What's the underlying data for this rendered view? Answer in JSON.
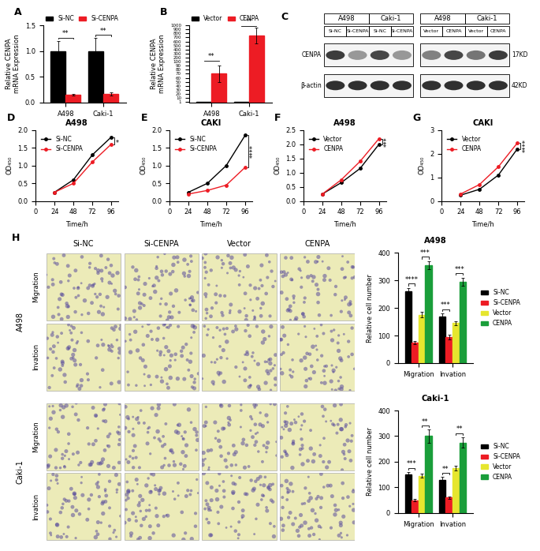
{
  "chart_data": [
    {
      "panel_label": "A",
      "type": "bar",
      "ylabel": "Relative CENPA\nmRNA Expression",
      "categories": [
        "A498",
        "Caki-1"
      ],
      "series": [
        {
          "name": "Si-NC",
          "color": "#000000",
          "values": [
            1.0,
            1.0
          ],
          "errors": [
            0.2,
            0.25
          ]
        },
        {
          "name": "Si-CENPA",
          "color": "#ed1c24",
          "values": [
            0.15,
            0.17
          ],
          "errors": [
            0.02,
            0.03
          ]
        }
      ],
      "ylim": [
        0,
        1.5
      ],
      "yticks": [
        {
          "value": 0,
          "label": "0.0"
        },
        {
          "value": 0.5,
          "label": "0.5"
        },
        {
          "value": 1.0,
          "label": "1.0"
        },
        {
          "value": 1.5,
          "label": "1.5"
        }
      ],
      "legend": "upper left",
      "comparisons": [
        {
          "category": "A498",
          "series": [
            "Si-NC",
            "Si-CENPA"
          ],
          "label": "**"
        },
        {
          "category": "Caki-1",
          "series": [
            "Si-NC",
            "Si-CENPA"
          ],
          "label": "**"
        }
      ]
    },
    {
      "panel_label": "B",
      "type": "bar",
      "ylabel": "Relative CENPA\nmRNA Expression",
      "categories": [
        "A498",
        "Caki-1"
      ],
      "series": [
        {
          "name": "Vector",
          "color": "#000000",
          "values": [
            1,
            1
          ]
        },
        {
          "name": "CENPA",
          "color": "#ed1c24",
          "values": [
            70,
            750
          ],
          "errors": [
            20,
            200
          ]
        }
      ],
      "ylim": [
        0,
        1000
      ],
      "yticks": [
        1,
        10,
        20,
        30,
        40,
        50,
        60,
        70,
        80,
        90,
        100,
        200,
        300,
        400,
        500,
        600,
        700,
        800,
        900,
        1000
      ],
      "legend": "upper left",
      "comparisons": [
        {
          "category": "A498",
          "series": [
            "Vector",
            "CENPA"
          ],
          "label": "**"
        },
        {
          "category": "Caki-1",
          "series": [
            "Vector",
            "CENPA"
          ],
          "label": "**"
        }
      ]
    },
    {
      "panel_label": "D",
      "type": "line",
      "title": "A498",
      "xlabel": "Time/h",
      "ylabel": "OD₄₅₀",
      "x": [
        24,
        48,
        72,
        96
      ],
      "series": [
        {
          "name": "Si-NC",
          "color": "#000000",
          "marker": "o",
          "values": [
            0.25,
            0.6,
            1.3,
            1.8
          ]
        },
        {
          "name": "Si-CENPA",
          "color": "#ed1c24",
          "marker": "o",
          "values": [
            0.25,
            0.5,
            1.1,
            1.6
          ]
        }
      ],
      "xlim": [
        0,
        105
      ],
      "xticks": [
        0,
        24,
        48,
        72,
        96
      ],
      "ylim": [
        0,
        2.0
      ],
      "yticks": [
        {
          "value": 0,
          "label": "0.0"
        },
        {
          "value": 0.5,
          "label": "0.5"
        },
        {
          "value": 1.0,
          "label": "1.0"
        },
        {
          "value": 1.5,
          "label": "1.5"
        },
        {
          "value": 2.0,
          "label": "2.0"
        }
      ],
      "legend": "upper left",
      "comparisons": [
        {
          "series": [
            "Si-NC",
            "Si-CENPA"
          ],
          "label": "*"
        }
      ]
    },
    {
      "panel_label": "E",
      "type": "line",
      "title": "CAKI",
      "xlabel": "Time/h",
      "ylabel": "OD₄₅₀",
      "x": [
        24,
        48,
        72,
        96
      ],
      "series": [
        {
          "name": "Si-NC",
          "color": "#000000",
          "marker": "o",
          "values": [
            0.25,
            0.5,
            1.0,
            1.85
          ]
        },
        {
          "name": "Si-CENPA",
          "color": "#ed1c24",
          "marker": "o",
          "values": [
            0.2,
            0.3,
            0.45,
            0.95
          ]
        }
      ],
      "xlim": [
        0,
        105
      ],
      "xticks": [
        0,
        24,
        48,
        72,
        96
      ],
      "ylim": [
        0,
        2.0
      ],
      "yticks": [
        {
          "value": 0,
          "label": "0.0"
        },
        {
          "value": 0.5,
          "label": "0.5"
        },
        {
          "value": 1.0,
          "label": "1.0"
        },
        {
          "value": 1.5,
          "label": "1.5"
        },
        {
          "value": 2.0,
          "label": "2.0"
        }
      ],
      "legend": "upper left",
      "comparisons": [
        {
          "series": [
            "Si-NC",
            "Si-CENPA"
          ],
          "label": "****"
        }
      ]
    },
    {
      "panel_label": "F",
      "type": "line",
      "title": "A498",
      "xlabel": "Time/h",
      "ylabel": "OD₄₅₀",
      "x": [
        24,
        48,
        72,
        96
      ],
      "series": [
        {
          "name": "Vector",
          "color": "#000000",
          "marker": "o",
          "values": [
            0.25,
            0.65,
            1.15,
            2.0
          ]
        },
        {
          "name": "CENPA",
          "color": "#ed1c24",
          "marker": "o",
          "values": [
            0.25,
            0.75,
            1.4,
            2.2
          ]
        }
      ],
      "xlim": [
        0,
        105
      ],
      "xticks": [
        0,
        24,
        48,
        72,
        96
      ],
      "ylim": [
        0,
        2.5
      ],
      "yticks": [
        {
          "value": 0,
          "label": "0.0"
        },
        {
          "value": 0.5,
          "label": "0.5"
        },
        {
          "value": 1.0,
          "label": "1.0"
        },
        {
          "value": 1.5,
          "label": "1.5"
        },
        {
          "value": 2.0,
          "label": "2.0"
        },
        {
          "value": 2.5,
          "label": "2.5"
        }
      ],
      "legend": "upper left",
      "comparisons": [
        {
          "series": [
            "Vector",
            "CENPA"
          ],
          "label": "***"
        }
      ]
    },
    {
      "panel_label": "G",
      "type": "line",
      "title": "CAKI",
      "xlabel": "Time/h",
      "ylabel": "OD₄₅₀",
      "x": [
        24,
        48,
        72,
        96
      ],
      "series": [
        {
          "name": "Vector",
          "color": "#000000",
          "marker": "o",
          "values": [
            0.25,
            0.5,
            1.1,
            2.2
          ]
        },
        {
          "name": "CENPA",
          "color": "#ed1c24",
          "marker": "o",
          "values": [
            0.3,
            0.7,
            1.45,
            2.45
          ]
        }
      ],
      "xlim": [
        0,
        105
      ],
      "xticks": [
        0,
        24,
        48,
        72,
        96
      ],
      "ylim": [
        0,
        3
      ],
      "yticks": [
        0,
        1,
        2,
        3
      ],
      "legend": "upper left",
      "comparisons": [
        {
          "series": [
            "Vector",
            "CENPA"
          ],
          "label": "****"
        }
      ]
    },
    {
      "type": "bar",
      "title": "A498",
      "ylabel": "Relative cell number",
      "categories": [
        "Migration",
        "Invation"
      ],
      "series": [
        {
          "name": "Si-NC",
          "color": "#000000",
          "values": [
            260,
            170
          ],
          "errors": [
            12,
            10
          ]
        },
        {
          "name": "Si-CENPA",
          "color": "#ed1c24",
          "values": [
            75,
            95
          ],
          "errors": [
            5,
            8
          ]
        },
        {
          "name": "Vector",
          "color": "#e6e62e",
          "values": [
            175,
            145
          ],
          "errors": [
            10,
            8
          ]
        },
        {
          "name": "CENPA",
          "color": "#1a9e3a",
          "values": [
            355,
            295
          ],
          "errors": [
            15,
            15
          ]
        }
      ],
      "ylim": [
        0,
        400
      ],
      "yticks": [
        0,
        100,
        200,
        300,
        400
      ],
      "legend": "right",
      "comparisons": [
        {
          "category": "Migration",
          "series": [
            "Si-NC",
            "Si-CENPA"
          ],
          "label": "****"
        },
        {
          "category": "Migration",
          "series": [
            "Vector",
            "CENPA"
          ],
          "label": "***"
        },
        {
          "category": "Invation",
          "series": [
            "Si-NC",
            "Si-CENPA"
          ],
          "label": "***"
        },
        {
          "category": "Invation",
          "series": [
            "Vector",
            "CENPA"
          ],
          "label": "***"
        }
      ]
    },
    {
      "type": "bar",
      "title": "Caki-1",
      "ylabel": "Relative cell number",
      "categories": [
        "Migration",
        "Invation"
      ],
      "series": [
        {
          "name": "Si-NC",
          "color": "#000000",
          "values": [
            150,
            130
          ],
          "errors": [
            10,
            10
          ]
        },
        {
          "name": "Si-CENPA",
          "color": "#ed1c24",
          "values": [
            50,
            60
          ],
          "errors": [
            5,
            5
          ]
        },
        {
          "name": "Vector",
          "color": "#e6e62e",
          "values": [
            145,
            175
          ],
          "errors": [
            8,
            10
          ]
        },
        {
          "name": "CENPA",
          "color": "#1a9e3a",
          "values": [
            300,
            275
          ],
          "errors": [
            25,
            20
          ]
        }
      ],
      "ylim": [
        0,
        400
      ],
      "yticks": [
        0,
        100,
        200,
        300,
        400
      ],
      "legend": "right",
      "comparisons": [
        {
          "category": "Migration",
          "series": [
            "Si-NC",
            "Si-CENPA"
          ],
          "label": "***"
        },
        {
          "category": "Migration",
          "series": [
            "Vector",
            "CENPA"
          ],
          "label": "**"
        },
        {
          "category": "Invation",
          "series": [
            "Si-NC",
            "Si-CENPA"
          ],
          "label": "**"
        },
        {
          "category": "Invation",
          "series": [
            "Vector",
            "CENPA"
          ],
          "label": "**"
        }
      ]
    }
  ],
  "western_blot": {
    "panel_label": "C",
    "blocks": [
      {
        "groups": [
          "A498",
          "Caki-1"
        ],
        "lanes": [
          "Si-NC",
          "Si-CENPA",
          "Si-NC",
          "Si-CENPA"
        ]
      },
      {
        "groups": [
          "A498",
          "Caki-1"
        ],
        "lanes": [
          "Vector",
          "CENPA",
          "Vector",
          "CENPA"
        ]
      }
    ],
    "bands": [
      {
        "name": "CENPA",
        "size": "17KD",
        "intensity": [
          [
            0.85,
            0.45,
            0.8,
            0.45
          ],
          [
            0.55,
            0.8,
            0.6,
            0.85
          ]
        ]
      },
      {
        "name": "β-actin",
        "size": "42KD",
        "intensity": [
          [
            0.9,
            0.9,
            0.9,
            0.9
          ],
          [
            0.9,
            0.9,
            0.9,
            0.9
          ]
        ]
      }
    ]
  },
  "transwell_images": {
    "panel_label": "H",
    "columns": [
      "Si-NC",
      "Si-CENPA",
      "Vector",
      "CENPA"
    ],
    "cell_lines": [
      "A498",
      "Caki-1"
    ],
    "rows": [
      "Migration",
      "Invation"
    ]
  }
}
